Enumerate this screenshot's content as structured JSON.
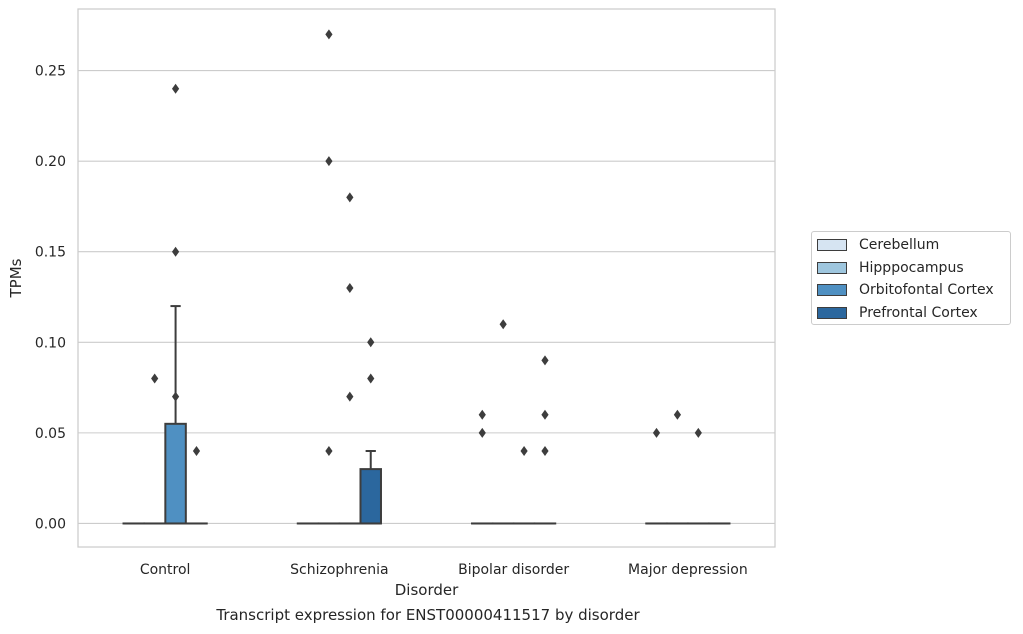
{
  "chart_data": {
    "type": "box",
    "title": "",
    "caption": "Transcript expression for ENST00000411517 by disorder",
    "xlabel": "Disorder",
    "ylabel": "TPMs",
    "ylim": [
      -0.013,
      0.284
    ],
    "yticks": [
      0.0,
      0.05,
      0.1,
      0.15,
      0.2,
      0.25
    ],
    "ytick_labels": [
      "0.00",
      "0.05",
      "0.10",
      "0.15",
      "0.20",
      "0.25"
    ],
    "grid": "horizontal",
    "legend_position": "right",
    "categories": [
      "Control",
      "Schizophrenia",
      "Bipolar disorder",
      "Major depression"
    ],
    "series": [
      {
        "name": "Cerebellum",
        "color": "#d6e4f2",
        "boxes": [
          {
            "q1": 0,
            "median": 0,
            "q3": 0,
            "whisker_low": 0,
            "whisker_high": 0,
            "outliers": []
          },
          {
            "q1": 0,
            "median": 0,
            "q3": 0,
            "whisker_low": 0,
            "whisker_high": 0,
            "outliers": []
          },
          {
            "q1": 0,
            "median": 0,
            "q3": 0,
            "whisker_low": 0,
            "whisker_high": 0,
            "outliers": [
              0.06,
              0.05
            ]
          },
          {
            "q1": 0,
            "median": 0,
            "q3": 0,
            "whisker_low": 0,
            "whisker_high": 0,
            "outliers": [
              0.05
            ]
          }
        ]
      },
      {
        "name": "Hipppocampus",
        "color": "#9ec6de",
        "boxes": [
          {
            "q1": 0,
            "median": 0,
            "q3": 0,
            "whisker_low": 0,
            "whisker_high": 0,
            "outliers": [
              0.08
            ]
          },
          {
            "q1": 0,
            "median": 0,
            "q3": 0,
            "whisker_low": 0,
            "whisker_high": 0,
            "outliers": [
              0.27,
              0.2,
              0.04
            ]
          },
          {
            "q1": 0,
            "median": 0,
            "q3": 0,
            "whisker_low": 0,
            "whisker_high": 0,
            "outliers": [
              0.11
            ]
          },
          {
            "q1": 0,
            "median": 0,
            "q3": 0,
            "whisker_low": 0,
            "whisker_high": 0,
            "outliers": [
              0.06
            ]
          }
        ]
      },
      {
        "name": "Orbitofontal Cortex",
        "color": "#4f90c2",
        "boxes": [
          {
            "q1": 0,
            "median": 0,
            "q3": 0.055,
            "whisker_low": 0,
            "whisker_high": 0.12,
            "outliers": [
              0.24,
              0.15,
              0.07
            ]
          },
          {
            "q1": 0,
            "median": 0,
            "q3": 0,
            "whisker_low": 0,
            "whisker_high": 0,
            "outliers": [
              0.18,
              0.13,
              0.07
            ]
          },
          {
            "q1": 0,
            "median": 0,
            "q3": 0,
            "whisker_low": 0,
            "whisker_high": 0,
            "outliers": [
              0.04
            ]
          },
          {
            "q1": 0,
            "median": 0,
            "q3": 0,
            "whisker_low": 0,
            "whisker_high": 0,
            "outliers": [
              0.05
            ]
          }
        ]
      },
      {
        "name": "Prefrontal Cortex",
        "color": "#2b679e",
        "boxes": [
          {
            "q1": 0,
            "median": 0,
            "q3": 0,
            "whisker_low": 0,
            "whisker_high": 0,
            "outliers": [
              0.04
            ]
          },
          {
            "q1": 0,
            "median": 0,
            "q3": 0.03,
            "whisker_low": 0,
            "whisker_high": 0.04,
            "outliers": [
              0.1,
              0.08
            ]
          },
          {
            "q1": 0,
            "median": 0,
            "q3": 0,
            "whisker_low": 0,
            "whisker_high": 0,
            "outliers": [
              0.09,
              0.06,
              0.04
            ]
          },
          {
            "q1": 0,
            "median": 0,
            "q3": 0,
            "whisker_low": 0,
            "whisker_high": 0,
            "outliers": []
          }
        ]
      }
    ]
  }
}
